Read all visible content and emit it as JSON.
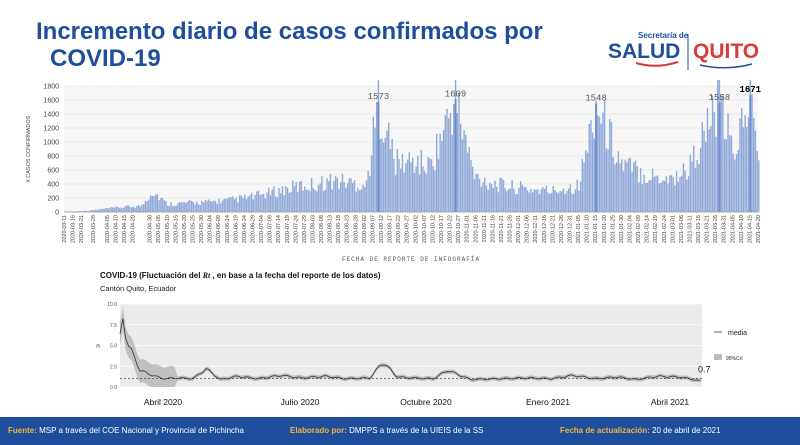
{
  "header": {
    "title_line1": "Incremento diario de casos confirmados por",
    "title_line2": "COVID-19",
    "logo_salud_top": "Secretaría de",
    "logo_salud_main": "SALUD",
    "logo_quito": "QUITO"
  },
  "chart_data": [
    {
      "type": "bar",
      "title": "",
      "xlabel": "FECHA DE REPORTE DE INFOGRAFÍA",
      "ylabel": "# CASOS CONFIRMADOS",
      "ylim": [
        0,
        1800
      ],
      "yticks": [
        0,
        200,
        400,
        600,
        800,
        1000,
        1200,
        1400,
        1600,
        1800
      ],
      "grid": true,
      "bar_color": "#8fa9d8",
      "start_date": "2020-03-11",
      "end_date": "2021-04-20",
      "tick_dates": [
        "2020-03-11",
        "2020-03-16",
        "2020-03-21",
        "2020-03-28",
        "2020-04-05",
        "2020-04-10",
        "2020-04-15",
        "2020-04-20",
        "2020-04-30",
        "2020-05-05",
        "2020-05-10",
        "2020-05-15",
        "2020-05-20",
        "2020-05-25",
        "2020-05-30",
        "2020-06-04",
        "2020-06-09",
        "2020-06-14",
        "2020-06-19",
        "2020-06-24",
        "2020-06-29",
        "2020-07-04",
        "2020-07-09",
        "2020-07-14",
        "2020-07-19",
        "2020-07-24",
        "2020-07-29",
        "2020-08-03",
        "2020-08-08",
        "2020-08-13",
        "2020-08-18",
        "2020-08-23",
        "2020-08-28",
        "2020-09-02",
        "2020-09-07",
        "2020-09-12",
        "2020-09-17",
        "2020-09-22",
        "2020-09-27",
        "2020-10-02",
        "2020-10-07",
        "2020-10-12",
        "2020-10-17",
        "2020-10-22",
        "2020-10-27",
        "2020-11-01",
        "2020-11-06",
        "2020-11-11",
        "2020-11-16",
        "2020-11-21",
        "2020-11-26",
        "2020-12-01",
        "2020-12-06",
        "2020-12-11",
        "2020-12-16",
        "2020-12-21",
        "2020-12-26",
        "2020-12-31",
        "2021-01-05",
        "2021-01-10",
        "2021-01-15",
        "2021-01-20",
        "2021-01-25",
        "2021-01-30",
        "2021-02-04",
        "2021-02-09",
        "2021-02-14",
        "2021-02-19",
        "2021-02-24",
        "2021-03-01",
        "2021-03-06",
        "2021-03-11",
        "2021-03-16",
        "2021-03-21",
        "2021-03-26",
        "2021-03-31",
        "2021-04-05",
        "2021-04-10",
        "2021-04-15",
        "2021-04-20"
      ],
      "points": [
        [
          "2020-03-11",
          2
        ],
        [
          "2020-03-25",
          20
        ],
        [
          "2020-04-05",
          50
        ],
        [
          "2020-04-15",
          70
        ],
        [
          "2020-04-25",
          90
        ],
        [
          "2020-05-01",
          300
        ],
        [
          "2020-05-10",
          110
        ],
        [
          "2020-05-20",
          130
        ],
        [
          "2020-06-01",
          140
        ],
        [
          "2020-06-15",
          170
        ],
        [
          "2020-06-29",
          220
        ],
        [
          "2020-07-10",
          280
        ],
        [
          "2020-07-24",
          360
        ],
        [
          "2020-08-05",
          400
        ],
        [
          "2020-08-15",
          450
        ],
        [
          "2020-08-25",
          420
        ],
        [
          "2020-09-03",
          380
        ],
        [
          "2020-09-10",
          1573
        ],
        [
          "2020-09-20",
          700
        ],
        [
          "2020-10-01",
          720
        ],
        [
          "2020-10-10",
          650
        ],
        [
          "2020-10-25",
          1609
        ],
        [
          "2020-11-05",
          500
        ],
        [
          "2020-11-20",
          380
        ],
        [
          "2020-12-05",
          330
        ],
        [
          "2020-12-20",
          300
        ],
        [
          "2021-01-05",
          380
        ],
        [
          "2021-01-15",
          1548
        ],
        [
          "2021-01-30",
          680
        ],
        [
          "2021-02-15",
          520
        ],
        [
          "2021-03-01",
          480
        ],
        [
          "2021-03-10",
          620
        ],
        [
          "2021-03-28",
          1558
        ],
        [
          "2021-04-05",
          820
        ],
        [
          "2021-04-15",
          1671
        ],
        [
          "2021-04-20",
          700
        ]
      ],
      "annotations": [
        {
          "date": "2020-09-10",
          "label": "1573"
        },
        {
          "date": "2020-10-25",
          "label": "1609"
        },
        {
          "date": "2021-01-15",
          "label": "1548"
        },
        {
          "date": "2021-03-28",
          "label": "1558"
        },
        {
          "date": "2021-04-15",
          "label": "1671"
        }
      ]
    },
    {
      "type": "line",
      "title_prefix": "COVID-19 (Fluctuación del ",
      "title_symbol": "Rt",
      "title_suffix": " , en base a la fecha del reporte de los datos)",
      "subtitle": "Cantón Quito, Ecuador",
      "ylabel": "Rt",
      "ylim": [
        0,
        10
      ],
      "yticks": [
        "0.0",
        "2.5",
        "5.0",
        "7.5",
        "10.0"
      ],
      "xlabels": [
        "Abril 2020",
        "Julio 2020",
        "Octubre 2020",
        "Enero 2021",
        "Abril 2021"
      ],
      "legend": [
        "media",
        "95%CrI"
      ],
      "legend_position": "right",
      "reference_line": 1.0,
      "last_value_label": "0.7",
      "line_color": "#333333",
      "band_color": "#bbbbbb",
      "points": [
        [
          "2020-03-11",
          6.0
        ],
        [
          "2020-03-13",
          8.5
        ],
        [
          "2020-03-16",
          5.2
        ],
        [
          "2020-03-20",
          4.0
        ],
        [
          "2020-03-25",
          2.0
        ],
        [
          "2020-04-01",
          1.5
        ],
        [
          "2020-04-10",
          1.0
        ],
        [
          "2020-04-20",
          1.1
        ],
        [
          "2020-05-01",
          1.0
        ],
        [
          "2020-05-10",
          2.2
        ],
        [
          "2020-05-20",
          0.9
        ],
        [
          "2020-06-01",
          1.3
        ],
        [
          "2020-06-15",
          1.0
        ],
        [
          "2020-07-01",
          1.4
        ],
        [
          "2020-07-15",
          1.1
        ],
        [
          "2020-08-01",
          1.3
        ],
        [
          "2020-08-15",
          1.0
        ],
        [
          "2020-09-01",
          1.1
        ],
        [
          "2020-09-10",
          3.0
        ],
        [
          "2020-09-20",
          1.2
        ],
        [
          "2020-10-01",
          1.1
        ],
        [
          "2020-10-15",
          1.0
        ],
        [
          "2020-10-25",
          2.0
        ],
        [
          "2020-11-10",
          0.9
        ],
        [
          "2020-12-01",
          1.0
        ],
        [
          "2020-12-20",
          1.1
        ],
        [
          "2021-01-05",
          1.0
        ],
        [
          "2021-01-20",
          1.4
        ],
        [
          "2021-02-05",
          1.0
        ],
        [
          "2021-02-20",
          1.2
        ],
        [
          "2021-03-05",
          0.9
        ],
        [
          "2021-03-20",
          1.3
        ],
        [
          "2021-04-05",
          1.2
        ],
        [
          "2021-04-20",
          0.7
        ]
      ]
    }
  ],
  "footer": {
    "fuente_label": "Fuente:",
    "fuente_text": " MSP a través del COE Nacional y Provincial de Pichincha",
    "elaborado_label": "Elaborado por:",
    "elaborado_text": " DMPPS a través de la UIEIS de la SS",
    "fecha_label": "Fecha de actualización:",
    "fecha_text": " 20 de abril de 2021"
  }
}
